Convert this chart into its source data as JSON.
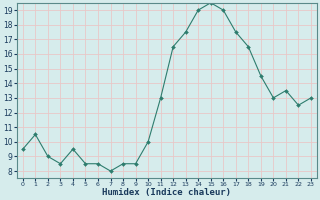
{
  "x": [
    0,
    1,
    2,
    3,
    4,
    5,
    6,
    7,
    8,
    9,
    10,
    11,
    12,
    13,
    14,
    15,
    16,
    17,
    18,
    19,
    20,
    21,
    22,
    23
  ],
  "y": [
    9.5,
    10.5,
    9.0,
    8.5,
    9.5,
    8.5,
    8.5,
    8.0,
    8.5,
    8.5,
    10.0,
    13.0,
    16.5,
    17.5,
    19.0,
    19.5,
    19.0,
    17.5,
    16.5,
    14.5,
    13.0,
    13.5,
    12.5,
    13.0
  ],
  "xlabel": "Humidex (Indice chaleur)",
  "ylim": [
    7.5,
    19.5
  ],
  "xlim": [
    -0.5,
    23.5
  ],
  "yticks": [
    8,
    9,
    10,
    11,
    12,
    13,
    14,
    15,
    16,
    17,
    18,
    19
  ],
  "xticks": [
    0,
    1,
    2,
    3,
    4,
    5,
    6,
    7,
    8,
    9,
    10,
    11,
    12,
    13,
    14,
    15,
    16,
    17,
    18,
    19,
    20,
    21,
    22,
    23
  ],
  "xtick_labels": [
    "0",
    "1",
    "2",
    "3",
    "4",
    "5",
    "6",
    "7",
    "8",
    "9",
    "10",
    "11",
    "12",
    "13",
    "14",
    "15",
    "16",
    "17",
    "18",
    "19",
    "20",
    "21",
    "22",
    "23"
  ],
  "line_color": "#2e7d6e",
  "marker_color": "#2e7d6e",
  "bg_color": "#d6ecec",
  "grid_color": "#e8c8c8",
  "xlabel_color": "#1a3a5c",
  "tick_label_color": "#1a3a5c",
  "spine_color": "#5a8a8a"
}
